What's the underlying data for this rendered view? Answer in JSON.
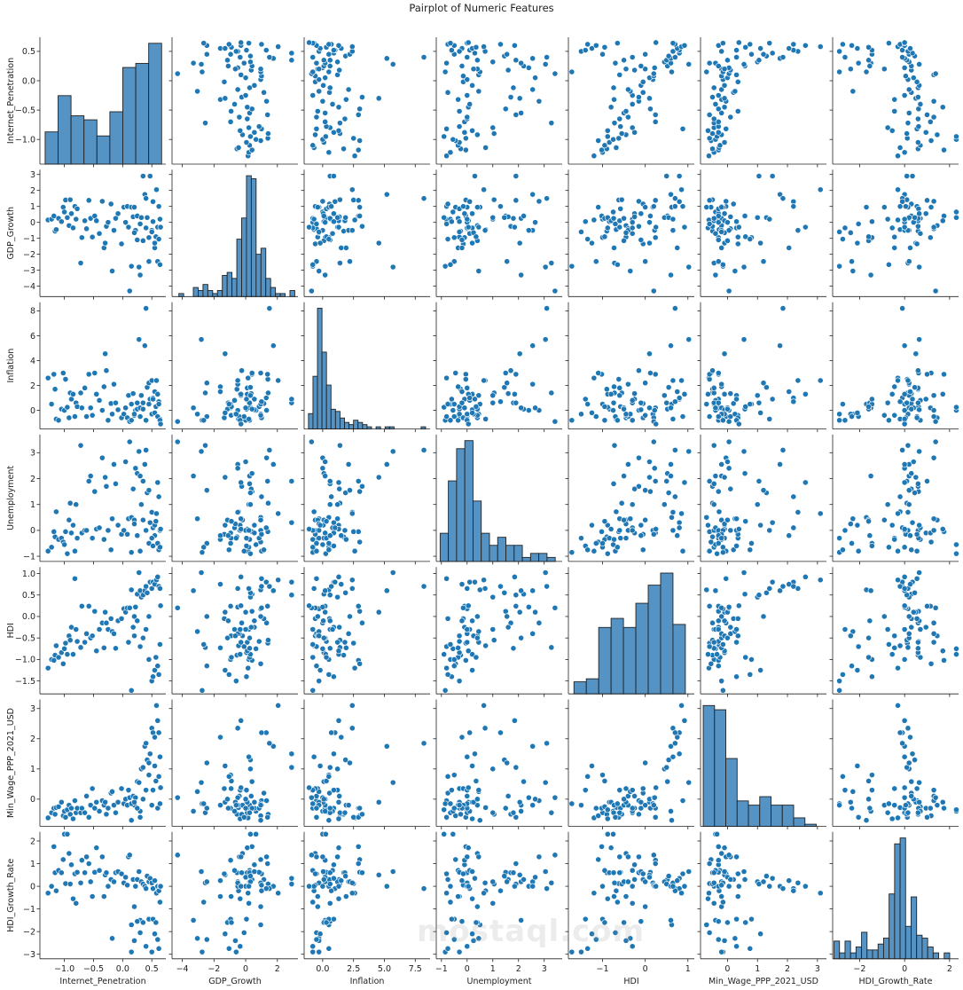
{
  "chart_data": {
    "type": "pairplot",
    "title": "Pairplot of Numeric Features",
    "variables": [
      "Internet_Penetration",
      "GDP_Growth",
      "Inflation",
      "Unemployment",
      "HDI",
      "Min_Wage_PPP_2021_USD",
      "HDI_Growth_Rate"
    ],
    "ranges": [
      [
        -1.42,
        0.74
      ],
      [
        -4.65,
        3.3
      ],
      [
        -1.5,
        8.7
      ],
      [
        -1.2,
        3.7
      ],
      [
        -1.8,
        1.15
      ],
      [
        -0.9,
        3.3
      ],
      [
        -3.2,
        2.4
      ]
    ],
    "tick_labels": [
      [
        "−1.0",
        "−0.5",
        "0.0",
        "0.5"
      ],
      [
        "−4",
        "−3",
        "−2",
        "−1",
        "0",
        "1",
        "2",
        "3"
      ],
      [
        "0",
        "2",
        "4",
        "6",
        "8"
      ],
      [
        "−1",
        "0",
        "1",
        "2",
        "3"
      ],
      [
        "−1.5",
        "−1.0",
        "−0.5",
        "0.0",
        "0.5",
        "1.0"
      ],
      [
        "0",
        "1",
        "2",
        "3"
      ],
      [
        "−3",
        "−2",
        "−1",
        "0",
        "1",
        "2"
      ]
    ],
    "x_tick_labels": [
      [
        "−1.0",
        "−0.5",
        "0.0",
        "0.5"
      ],
      [
        "−4",
        "−2",
        "0",
        "2"
      ],
      [
        "0.0",
        "2.5",
        "5.0",
        "7.5"
      ],
      [
        "−1",
        "0",
        "1",
        "2",
        "3"
      ],
      [
        "−1",
        "0",
        "1"
      ],
      [
        "0",
        "1",
        "2",
        "3"
      ],
      [
        "−2",
        "0",
        "2"
      ]
    ],
    "histograms": [
      {
        "start": -1.33,
        "bin_width": 0.222,
        "counts": [
          8,
          17,
          12,
          11,
          7,
          13,
          24,
          25,
          30
        ]
      },
      {
        "start": -4.22,
        "bin_width": 0.305,
        "counts": [
          1,
          0,
          0,
          3,
          2,
          4,
          2,
          1,
          2,
          7,
          8,
          6,
          19,
          26,
          40,
          39,
          14,
          16,
          6,
          3,
          1,
          1,
          0,
          2
        ]
      },
      {
        "start": -1.15,
        "bin_width": 0.365,
        "counts": [
          7,
          24,
          55,
          35,
          20,
          9,
          8,
          5,
          3,
          2,
          4,
          3,
          2,
          1,
          0,
          1,
          0,
          1,
          1,
          0,
          0,
          0,
          0,
          0,
          0,
          1
        ]
      },
      {
        "start": -1.05,
        "bin_width": 0.32,
        "counts": [
          7,
          20,
          28,
          30,
          15,
          7,
          4,
          6,
          4,
          4,
          1,
          2,
          2,
          1
        ]
      },
      {
        "start": -1.67,
        "bin_width": 0.29,
        "counts": [
          4,
          5,
          22,
          25,
          22,
          30,
          36,
          40,
          23
        ]
      },
      {
        "start": -0.81,
        "bin_width": 0.377,
        "counts": [
          57,
          55,
          32,
          12,
          10,
          14,
          10,
          10,
          4,
          1
        ]
      },
      {
        "start": -3.14,
        "bin_width": 0.245,
        "counts": [
          6,
          2,
          6,
          2,
          4,
          9,
          3,
          3,
          5,
          7,
          22,
          39,
          41,
          11,
          21,
          8,
          7,
          4,
          2,
          0,
          2
        ]
      }
    ],
    "colors": {
      "point": "#1f77b4",
      "point_edge": "#ffffff",
      "bar": "#5593c5",
      "bar_edge": "#222222",
      "axis": "#222222"
    },
    "rows": [
      [
        -1.28,
        0.15,
        2.6,
        -0.8,
        -1.2,
        -0.62,
        -0.3
      ],
      [
        -1.22,
        0.2,
        0.5,
        -0.65,
        -1.0,
        -0.45,
        0.0
      ],
      [
        -1.18,
        0.4,
        2.9,
        -0.05,
        -1.02,
        -0.3,
        1.75
      ],
      [
        -1.16,
        -0.55,
        1.7,
        -0.25,
        -0.9,
        -0.5,
        0.6
      ],
      [
        -1.14,
        -0.45,
        -0.7,
        0.72,
        -0.68,
        -0.28,
        -0.2
      ],
      [
        -1.1,
        0.25,
        -0.8,
        -0.35,
        -0.95,
        -0.25,
        0.7
      ],
      [
        -1.05,
        0.05,
        0.1,
        -0.3,
        -0.84,
        -0.1,
        0.6
      ],
      [
        -1.02,
        0.95,
        3.0,
        -0.45,
        -1.1,
        -0.55,
        1.18
      ],
      [
        -1.0,
        0.65,
        0.0,
        -0.55,
        -0.75,
        -0.4,
        2.3
      ],
      [
        -0.98,
        1.4,
        2.5,
        -0.05,
        -0.62,
        -0.6,
        0.12
      ],
      [
        -0.95,
        0.3,
        0.25,
        -0.9,
        -0.88,
        -0.35,
        2.3
      ],
      [
        -0.92,
        -0.2,
        -0.6,
        0.4,
        -0.45,
        -0.2,
        1.45
      ],
      [
        -0.9,
        1.42,
        1.4,
        1.05,
        -0.55,
        -0.5,
        0.1
      ],
      [
        -0.88,
        0.55,
        0.9,
        -0.1,
        -0.25,
        -0.3,
        0.95
      ],
      [
        -0.85,
        -0.35,
        1.3,
        0.2,
        -0.88,
        -0.65,
        -0.55
      ],
      [
        -0.82,
        1.0,
        -0.5,
        -0.8,
        0.88,
        -0.05,
        0.55
      ],
      [
        -0.8,
        0.2,
        0.6,
        1.0,
        -0.3,
        -0.45,
        -0.75
      ],
      [
        -0.78,
        0.85,
        0.3,
        -0.3,
        -0.58,
        -0.3,
        0.62
      ],
      [
        -0.72,
        -2.55,
        1.4,
        3.28,
        -0.72,
        -0.45,
        0.15
      ],
      [
        -0.7,
        -0.95,
        0.2,
        -0.1,
        0.24,
        -0.3,
        1.15
      ],
      [
        -0.65,
        0.1,
        1.8,
        0.0,
        -0.6,
        -0.45,
        0.6
      ],
      [
        -0.62,
        -0.4,
        -0.5,
        0.0,
        -0.4,
        0.1,
        1.3
      ],
      [
        -0.58,
        1.38,
        2.9,
        1.9,
        0.24,
        -0.6,
        1.0
      ],
      [
        -0.55,
        0.25,
        0.2,
        2.1,
        -0.5,
        -0.2,
        0.2
      ],
      [
        -0.52,
        -0.92,
        -0.4,
        -0.3,
        -0.45,
        0.35,
        -0.45
      ],
      [
        -0.48,
        0.4,
        3.0,
        1.5,
        0.12,
        -0.3,
        0.62
      ],
      [
        -0.45,
        0.1,
        1.3,
        0.05,
        -0.8,
        -0.1,
        1.7
      ],
      [
        -0.4,
        -0.7,
        0.8,
        0.1,
        -0.3,
        -0.4,
        0.7
      ],
      [
        -0.35,
        1.32,
        0.0,
        2.8,
        -0.15,
        -0.05,
        1.3
      ],
      [
        -0.32,
        -1.6,
        1.9,
        -0.35,
        -0.73,
        -0.2,
        -0.45
      ],
      [
        -0.3,
        -1.3,
        4.55,
        2.05,
        0.1,
        -0.1,
        0.5
      ],
      [
        -0.28,
        -0.25,
        3.2,
        1.7,
        -0.15,
        -0.5,
        0.6
      ],
      [
        -0.25,
        0.0,
        -0.8,
        0.0,
        -0.3,
        -0.3,
        0.0
      ],
      [
        -0.2,
        1.15,
        0.55,
        -0.75,
        -0.05,
        0.2,
        0.3
      ],
      [
        -0.18,
        -3.05,
        -0.3,
        0.45,
        -0.35,
        0.25,
        -2.3
      ],
      [
        -0.15,
        -0.5,
        2.1,
        2.55,
        -0.4,
        -0.2,
        0.2
      ],
      [
        -0.12,
        0.25,
        0.6,
        1.8,
        -0.74,
        -0.45,
        0.6
      ],
      [
        -0.08,
        0.55,
        0.05,
        0.2,
        -0.1,
        -0.1,
        0.65
      ],
      [
        -0.02,
        -1.35,
        -0.6,
        -0.15,
        -0.05,
        0.35,
        0.55
      ],
      [
        0.02,
        0.95,
        -0.3,
        0.0,
        0.18,
        -0.15,
        0.15
      ],
      [
        0.05,
        0.0,
        0.2,
        2.65,
        0.1,
        0.0,
        0.4
      ],
      [
        0.08,
        1.0,
        -0.6,
        -0.15,
        0.2,
        -0.2,
        0.05
      ],
      [
        0.1,
        -0.3,
        1.2,
        0.45,
        -0.6,
        0.3,
        1.3
      ],
      [
        0.12,
        -4.3,
        -0.9,
        3.42,
        0.2,
        0.05,
        1.38
      ],
      [
        0.15,
        0.95,
        0.5,
        0.5,
        0.62,
        -0.7,
        -1.7
      ],
      [
        0.18,
        0.35,
        1.35,
        1.6,
        -0.25,
        0.1,
        0.3
      ],
      [
        0.2,
        0.95,
        -0.4,
        0.4,
        0.0,
        -0.2,
        -0.9
      ],
      [
        0.22,
        -0.5,
        0.0,
        2.4,
        0.22,
        0.05,
        0.0
      ],
      [
        0.25,
        0.4,
        0.1,
        2.2,
        0.52,
        0.58,
        0.3
      ],
      [
        0.28,
        -2.8,
        5.7,
        3.05,
        1.02,
        0.55,
        0.65
      ],
      [
        0.3,
        -3.3,
        0.2,
        2.1,
        0.6,
        -0.4,
        -1.5
      ],
      [
        0.32,
        0.3,
        1.2,
        1.0,
        0.45,
        1.0,
        0.2
      ],
      [
        0.35,
        2.9,
        0.6,
        1.9,
        0.5,
        1.05,
        0.1
      ],
      [
        0.38,
        1.75,
        5.2,
        2.55,
        0.6,
        1.75,
        0.0
      ],
      [
        0.4,
        1.5,
        8.2,
        3.1,
        0.7,
        1.85,
        -0.1
      ],
      [
        0.42,
        0.3,
        1.85,
        1.45,
        0.55,
        1.3,
        0.45
      ],
      [
        0.45,
        -2.45,
        2.2,
        1.55,
        0.0,
        1.2,
        0.2
      ],
      [
        0.47,
        2.9,
        0.9,
        0.3,
        0.8,
        1.5,
        0.35
      ],
      [
        0.5,
        -0.5,
        2.4,
        0.7,
        0.65,
        2.35,
        0.15
      ],
      [
        0.52,
        1.3,
        1.0,
        0.1,
        0.8,
        2.2,
        -0.1
      ],
      [
        0.55,
        -1.6,
        1.5,
        -0.2,
        0.75,
        2.05,
        0.25
      ],
      [
        0.58,
        2.05,
        2.4,
        0.65,
        0.85,
        3.1,
        -0.3
      ],
      [
        0.6,
        -0.3,
        1.3,
        1.85,
        0.92,
        2.6,
        0.0
      ],
      [
        0.62,
        1.0,
        0.7,
        1.3,
        0.7,
        2.2,
        -0.2
      ],
      [
        0.64,
        0.2,
        -0.7,
        0.0,
        0.65,
        1.4,
        0.0
      ],
      [
        0.15,
        -2.75,
        -0.8,
        -0.85,
        -1.72,
        -0.15,
        -2.9
      ],
      [
        0.2,
        -0.65,
        -0.3,
        0.25,
        -0.45,
        -0.1,
        -2.4
      ],
      [
        0.25,
        -1.1,
        0.6,
        -0.2,
        -0.1,
        -0.3,
        -1.55
      ],
      [
        0.3,
        -0.1,
        -0.5,
        -0.8,
        -0.7,
        -0.6,
        -2.05
      ],
      [
        0.35,
        -1.15,
        0.1,
        0.4,
        -0.5,
        0.0,
        -1.6
      ],
      [
        0.4,
        -0.35,
        -0.8,
        0.0,
        -0.3,
        0.3,
        -2.65
      ],
      [
        0.45,
        -0.95,
        0.5,
        -0.5,
        -1.0,
        0.8,
        -1.45
      ],
      [
        0.5,
        -0.6,
        -0.3,
        -0.3,
        -1.5,
        -0.2,
        -2.9
      ],
      [
        0.52,
        0.05,
        0.9,
        -0.6,
        -1.4,
        0.3,
        -1.45
      ],
      [
        0.55,
        -1.3,
        -0.2,
        0.2,
        -1.25,
        1.1,
        -2.1
      ],
      [
        0.57,
        -0.9,
        0.3,
        0.35,
        -0.95,
        0.6,
        -1.6
      ],
      [
        0.6,
        -2.45,
        -0.5,
        -0.5,
        -1.15,
        -0.3,
        -2.35
      ],
      [
        0.62,
        -1.05,
        0.5,
        -0.75,
        -1.35,
        0.75,
        -2.75
      ],
      [
        0.64,
        -2.65,
        -0.8,
        -0.65,
        -0.65,
        -0.15,
        -0.7
      ],
      [
        0.65,
        -0.3,
        -1.1,
        0.05,
        0.25,
        0.38,
        0.0
      ]
    ]
  },
  "watermark": "mostaql.com"
}
